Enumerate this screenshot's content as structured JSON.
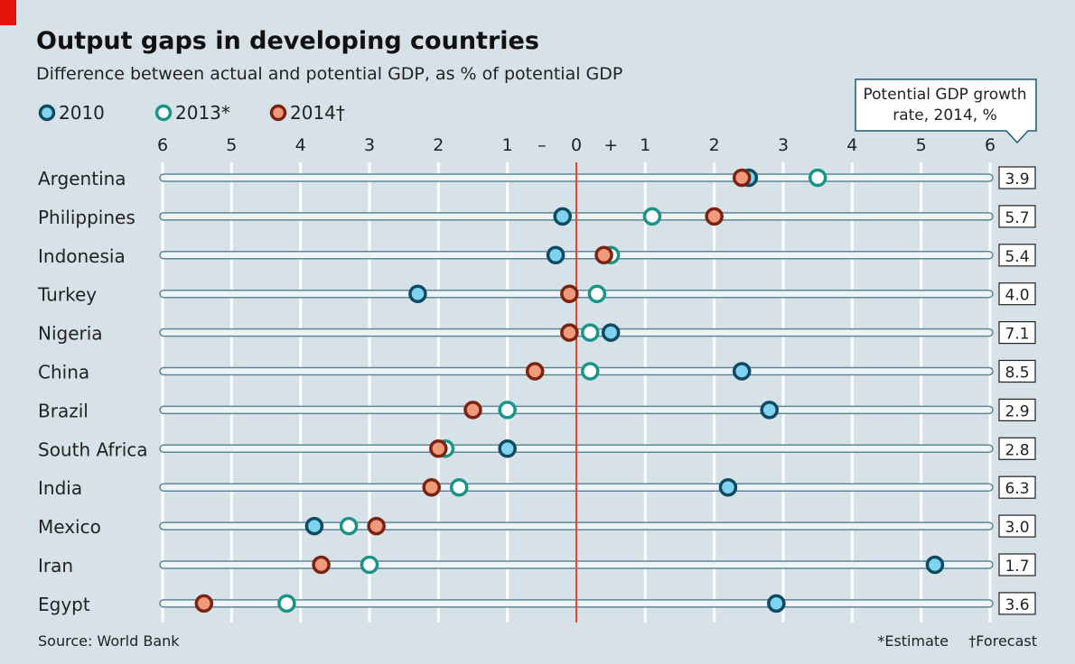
{
  "chart_data": {
    "type": "scatter",
    "title": "Output gaps in developing countries",
    "subtitle": "Difference between actual and potential GDP, as % of potential GDP",
    "xlim": [
      -6,
      6
    ],
    "x_tick_values": [
      -6,
      -5,
      -4,
      -3,
      -2,
      -1,
      0,
      1,
      2,
      3,
      4,
      5,
      6
    ],
    "x_tick_labels": [
      "6",
      "5",
      "4",
      "3",
      "2",
      "1",
      "0",
      "1",
      "2",
      "3",
      "4",
      "5",
      "6"
    ],
    "sign_labels": {
      "negative": "–",
      "positive": "+"
    },
    "grid": true,
    "legend_placement": "top-left",
    "series": [
      {
        "name": "2010",
        "fill": "#7fd3ef",
        "stroke": "#0e4a63",
        "values": [
          2.5,
          -0.2,
          -0.3,
          -2.3,
          0.5,
          2.4,
          2.8,
          -1.0,
          2.2,
          -3.8,
          5.2,
          2.9
        ]
      },
      {
        "name": "2013*",
        "fill": "#ffffff",
        "stroke": "#1a9488",
        "values": [
          3.5,
          1.1,
          0.5,
          0.3,
          0.2,
          0.2,
          -1.0,
          -1.9,
          -1.7,
          -3.3,
          -3.0,
          -4.2
        ]
      },
      {
        "name": "2014†",
        "fill": "#ef9b7b",
        "stroke": "#7a2312",
        "values": [
          2.4,
          2.0,
          0.4,
          -0.1,
          -0.1,
          -0.6,
          -1.5,
          -2.0,
          -2.1,
          -2.9,
          -3.7,
          -5.4
        ]
      }
    ],
    "categories": [
      "Argentina",
      "Philippines",
      "Indonesia",
      "Turkey",
      "Nigeria",
      "China",
      "Brazil",
      "South Africa",
      "India",
      "Mexico",
      "Iran",
      "Egypt"
    ],
    "potential_growth_label": "Potential GDP growth rate, 2014, %",
    "potential_growth_label_lines": [
      "Potential GDP growth",
      "rate, 2014, %"
    ],
    "potential_growth": [
      "3.9",
      "5.7",
      "5.4",
      "4.0",
      "7.1",
      "8.5",
      "2.9",
      "2.8",
      "6.3",
      "3.0",
      "1.7",
      "3.6"
    ],
    "zero_line_color": "#e3472d"
  },
  "footer": {
    "source": "Source: World Bank",
    "note_estimate": "*Estimate",
    "note_forecast": "†Forecast"
  }
}
